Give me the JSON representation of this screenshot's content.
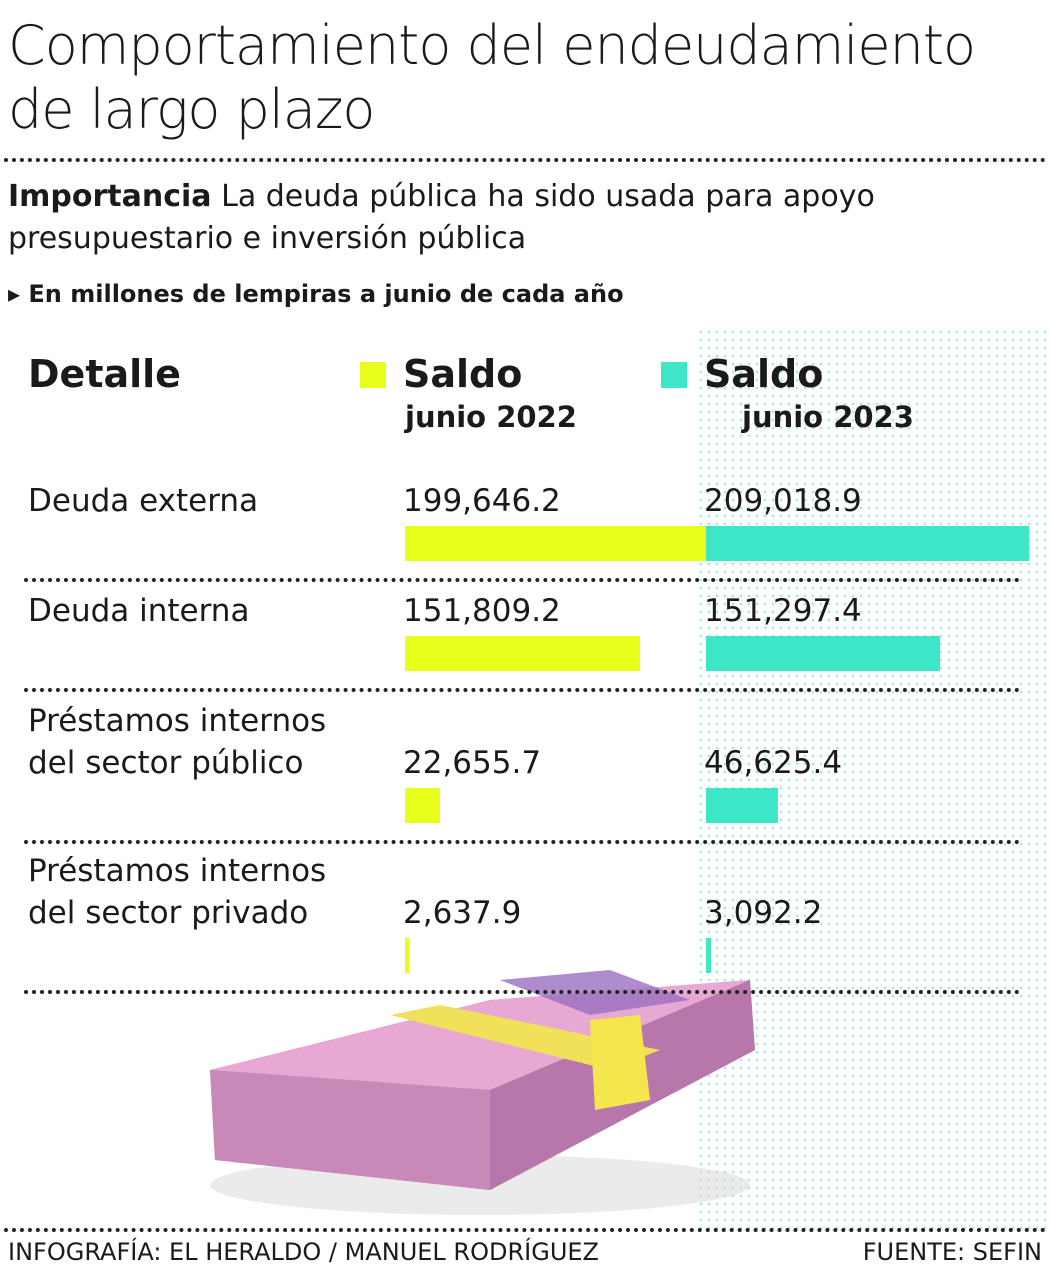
{
  "title": "Comportamiento del endeudamiento de largo plazo",
  "intro": {
    "lead": "Importancia",
    "text": "La deuda pública ha sido usada para apoyo presupuestario e inversión pública"
  },
  "note": "En millones de lempiras a junio de cada año",
  "chart_data": {
    "type": "bar",
    "category_header": "Detalle",
    "categories": [
      "Deuda externa",
      "Deuda interna",
      "Préstamos internos del sector público",
      "Préstamos internos del sector privado"
    ],
    "series": [
      {
        "name": "Saldo",
        "period": "junio 2022",
        "color": "#e8ff1c",
        "values": [
          199646.2,
          151809.2,
          22655.7,
          2637.9
        ],
        "value_labels": [
          "199,646.2",
          "151,809.2",
          "22,655.7",
          "2,637.9"
        ]
      },
      {
        "name": "Saldo",
        "period": "junio 2023",
        "color": "#3ee6c8",
        "values": [
          209018.9,
          151297.4,
          46625.4,
          3092.2
        ],
        "value_labels": [
          "209,018.9",
          "151,297.4",
          "46,625.4",
          "3,092.2"
        ]
      }
    ]
  },
  "credit": "INFOGRAFÍA: EL HERALDO / MANUEL RODRÍGUEZ",
  "source": "FUENTE: SEFIN"
}
